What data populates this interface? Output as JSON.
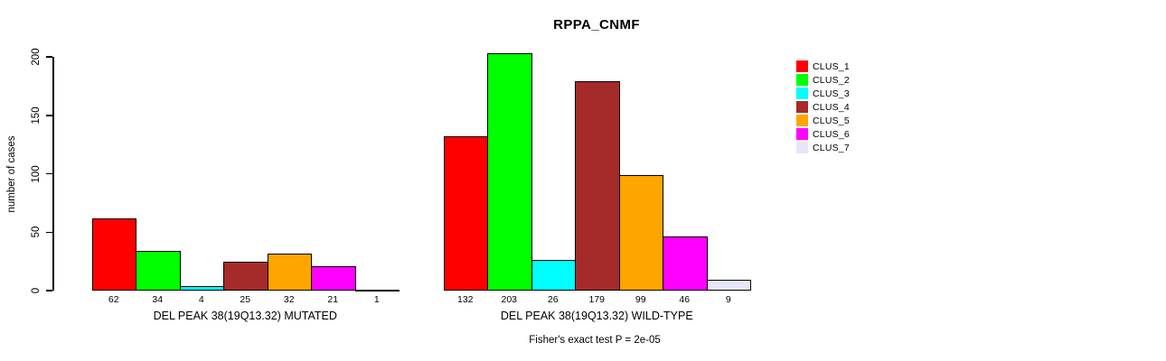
{
  "title": "RPPA_CNMF",
  "footer": "Fisher's exact test P = 2e-05",
  "legend": [
    {
      "label": "CLUS_1",
      "color": "#FF0000"
    },
    {
      "label": "CLUS_2",
      "color": "#00FF00"
    },
    {
      "label": "CLUS_3",
      "color": "#00FFFF"
    },
    {
      "label": "CLUS_4",
      "color": "#A52A2A"
    },
    {
      "label": "CLUS_5",
      "color": "#FFA500"
    },
    {
      "label": "CLUS_6",
      "color": "#FF00FF"
    },
    {
      "label": "CLUS_7",
      "color": "#E6E6FA"
    }
  ],
  "chart_data": {
    "type": "bar",
    "title": "RPPA_CNMF",
    "xlabel": "",
    "ylabel": "number of cases",
    "yticks": [
      0,
      50,
      100,
      150,
      200
    ],
    "ylim": [
      0,
      203
    ],
    "grid": false,
    "legend_position": "right",
    "categories": [
      "CLUS_1",
      "CLUS_2",
      "CLUS_3",
      "CLUS_4",
      "CLUS_5",
      "CLUS_6",
      "CLUS_7"
    ],
    "colors": [
      "#FF0000",
      "#00FF00",
      "#00FFFF",
      "#A52A2A",
      "#FFA500",
      "#FF00FF",
      "#E6E6FA"
    ],
    "groups": [
      {
        "label": "DEL PEAK 38(19Q13.32) MUTATED",
        "values": [
          62,
          34,
          4,
          25,
          32,
          21,
          1
        ]
      },
      {
        "label": "DEL PEAK 38(19Q13.32) WILD-TYPE",
        "values": [
          132,
          203,
          26,
          179,
          99,
          46,
          9
        ]
      }
    ],
    "annotation": "Fisher's exact test P = 2e-05"
  }
}
